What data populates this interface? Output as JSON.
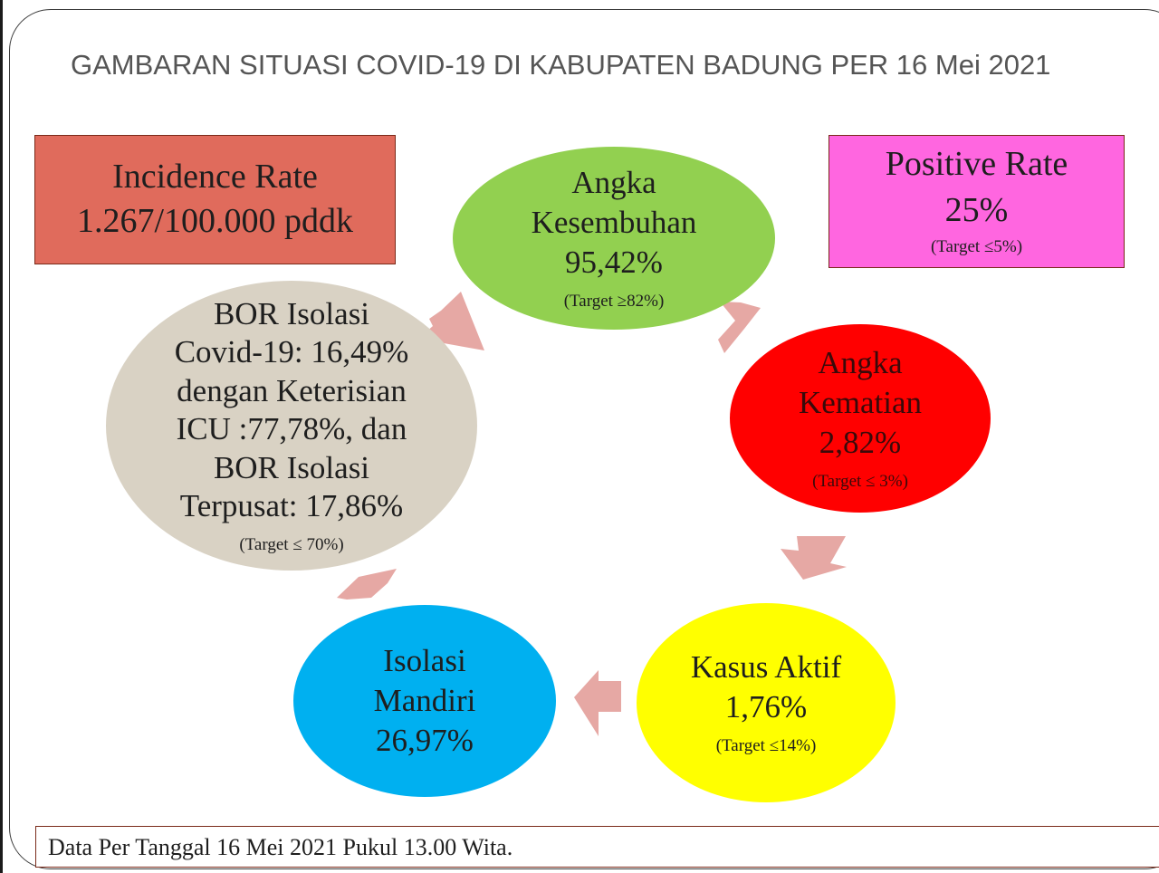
{
  "title": "GAMBARAN SITUASI COVID-19 DI KABUPATEN BADUNG PER 16 Mei 2021",
  "incidence_rate": {
    "label": "Incidence Rate",
    "value": "1.267/100.000 pddk",
    "color": "#e06b5c"
  },
  "positive_rate": {
    "label": "Positive Rate",
    "value": "25%",
    "target": "(Target ≤5%)",
    "color": "#ff66e0"
  },
  "kesembuhan": {
    "line1": "Angka",
    "line2": "Kesembuhan",
    "value": "95,42%",
    "target": "(Target ≥82%)",
    "color": "#92d050"
  },
  "kematian": {
    "line1": "Angka",
    "line2": "Kematian",
    "value": "2,82%",
    "target": "(Target ≤ 3%)",
    "color": "#ff0000"
  },
  "kasus_aktif": {
    "line1": "Kasus Aktif",
    "value": "1,76%",
    "target": "(Target ≤14%)",
    "color": "#ffff00"
  },
  "isolasi_mandiri": {
    "line1": "Isolasi",
    "line2": "Mandiri",
    "value": "26,97%",
    "color": "#00b0f0"
  },
  "bor": {
    "line1": "BOR Isolasi",
    "line2": "Covid-19: 16,49%",
    "line3": "dengan Keterisian",
    "line4": "ICU :77,78%, dan",
    "line5": "BOR Isolasi",
    "line6": "Terpusat: 17,86%",
    "target": "(Target ≤ 70%)",
    "color": "#d9d2c4"
  },
  "arrow_color": "#e6a8a4",
  "footer": "Data Per Tanggal 16 Mei 2021 Pukul 13.00 Wita."
}
